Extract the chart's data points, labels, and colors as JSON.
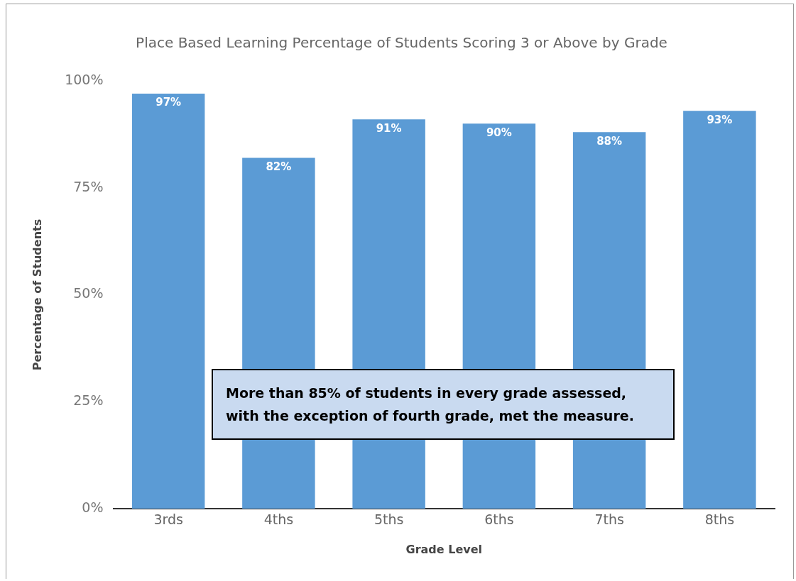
{
  "chart_data": {
    "type": "bar",
    "title": "Place Based Learning Percentage of Students Scoring 3 or Above by Grade",
    "xlabel": "Grade Level",
    "ylabel": "Percentage of Students",
    "categories": [
      "3rds",
      "4ths",
      "5ths",
      "6ths",
      "7ths",
      "8ths"
    ],
    "values": [
      97,
      82,
      91,
      90,
      88,
      93
    ],
    "color": "#5b9bd5",
    "value_labels": [
      "97%",
      "82%",
      "91%",
      "90%",
      "88%",
      "93%"
    ],
    "ylim": [
      0,
      100
    ],
    "yticks": [
      {
        "value": 0,
        "label": "0%"
      },
      {
        "value": 25,
        "label": "25%"
      },
      {
        "value": 50,
        "label": "50%"
      },
      {
        "value": 75,
        "label": "75%"
      },
      {
        "value": 100,
        "label": "100%"
      }
    ],
    "grid": false,
    "legend": false,
    "annotations": [
      "More than 85% of students in every grade assessed, with the exception of fourth grade, met the measure."
    ]
  }
}
